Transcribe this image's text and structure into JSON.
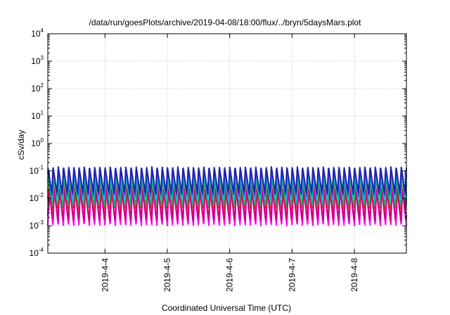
{
  "chart_data": {
    "type": "line",
    "title": "/data/run/goesPlots/archive/2019-04-08/18:00/flux/../bryn/5daysMars.plot",
    "xlabel": "Coordinated Universal Time (UTC)",
    "ylabel": "cSv/day",
    "y_scale": "log",
    "ylim": [
      0.0001,
      10000
    ],
    "y_ticks": [
      {
        "base": "10",
        "exp": "4",
        "value": 10000
      },
      {
        "base": "10",
        "exp": "3",
        "value": 1000
      },
      {
        "base": "10",
        "exp": "2",
        "value": 100
      },
      {
        "base": "10",
        "exp": "1",
        "value": 10
      },
      {
        "base": "10",
        "exp": "0",
        "value": 1
      },
      {
        "base": "10",
        "exp": "-1",
        "value": 0.1
      },
      {
        "base": "10",
        "exp": "-2",
        "value": 0.01
      },
      {
        "base": "10",
        "exp": "-3",
        "value": 0.001
      },
      {
        "base": "10",
        "exp": "-4",
        "value": 0.0001
      }
    ],
    "xlim": [
      "2019-04-03T02:00",
      "2019-04-08T20:00"
    ],
    "x_ticks": [
      {
        "label": "2019-4-4",
        "value": "2019-04-04T00:00"
      },
      {
        "label": "2019-4-5",
        "value": "2019-04-05T00:00"
      },
      {
        "label": "2019-4-6",
        "value": "2019-04-06T00:00"
      },
      {
        "label": "2019-4-7",
        "value": "2019-04-07T00:00"
      },
      {
        "label": "2019-4-8",
        "value": "2019-04-08T00:00"
      }
    ],
    "grid": true,
    "legend": "none",
    "cycles_per_day": 12,
    "series": [
      {
        "color": "#ff00ff",
        "peak": 0.02,
        "trough": 0.001
      },
      {
        "color": "#cc0077",
        "peak": 0.025,
        "trough": 0.0015
      },
      {
        "color": "#ee2222",
        "peak": 0.06,
        "trough": 0.004
      },
      {
        "color": "#22aa55",
        "peak": 0.06,
        "trough": 0.005
      },
      {
        "color": "#00cccc",
        "peak": 0.09,
        "trough": 0.008
      },
      {
        "color": "#2255ff",
        "peak": 0.12,
        "trough": 0.012
      },
      {
        "color": "#2222aa",
        "peak": 0.14,
        "trough": 0.015
      }
    ]
  }
}
